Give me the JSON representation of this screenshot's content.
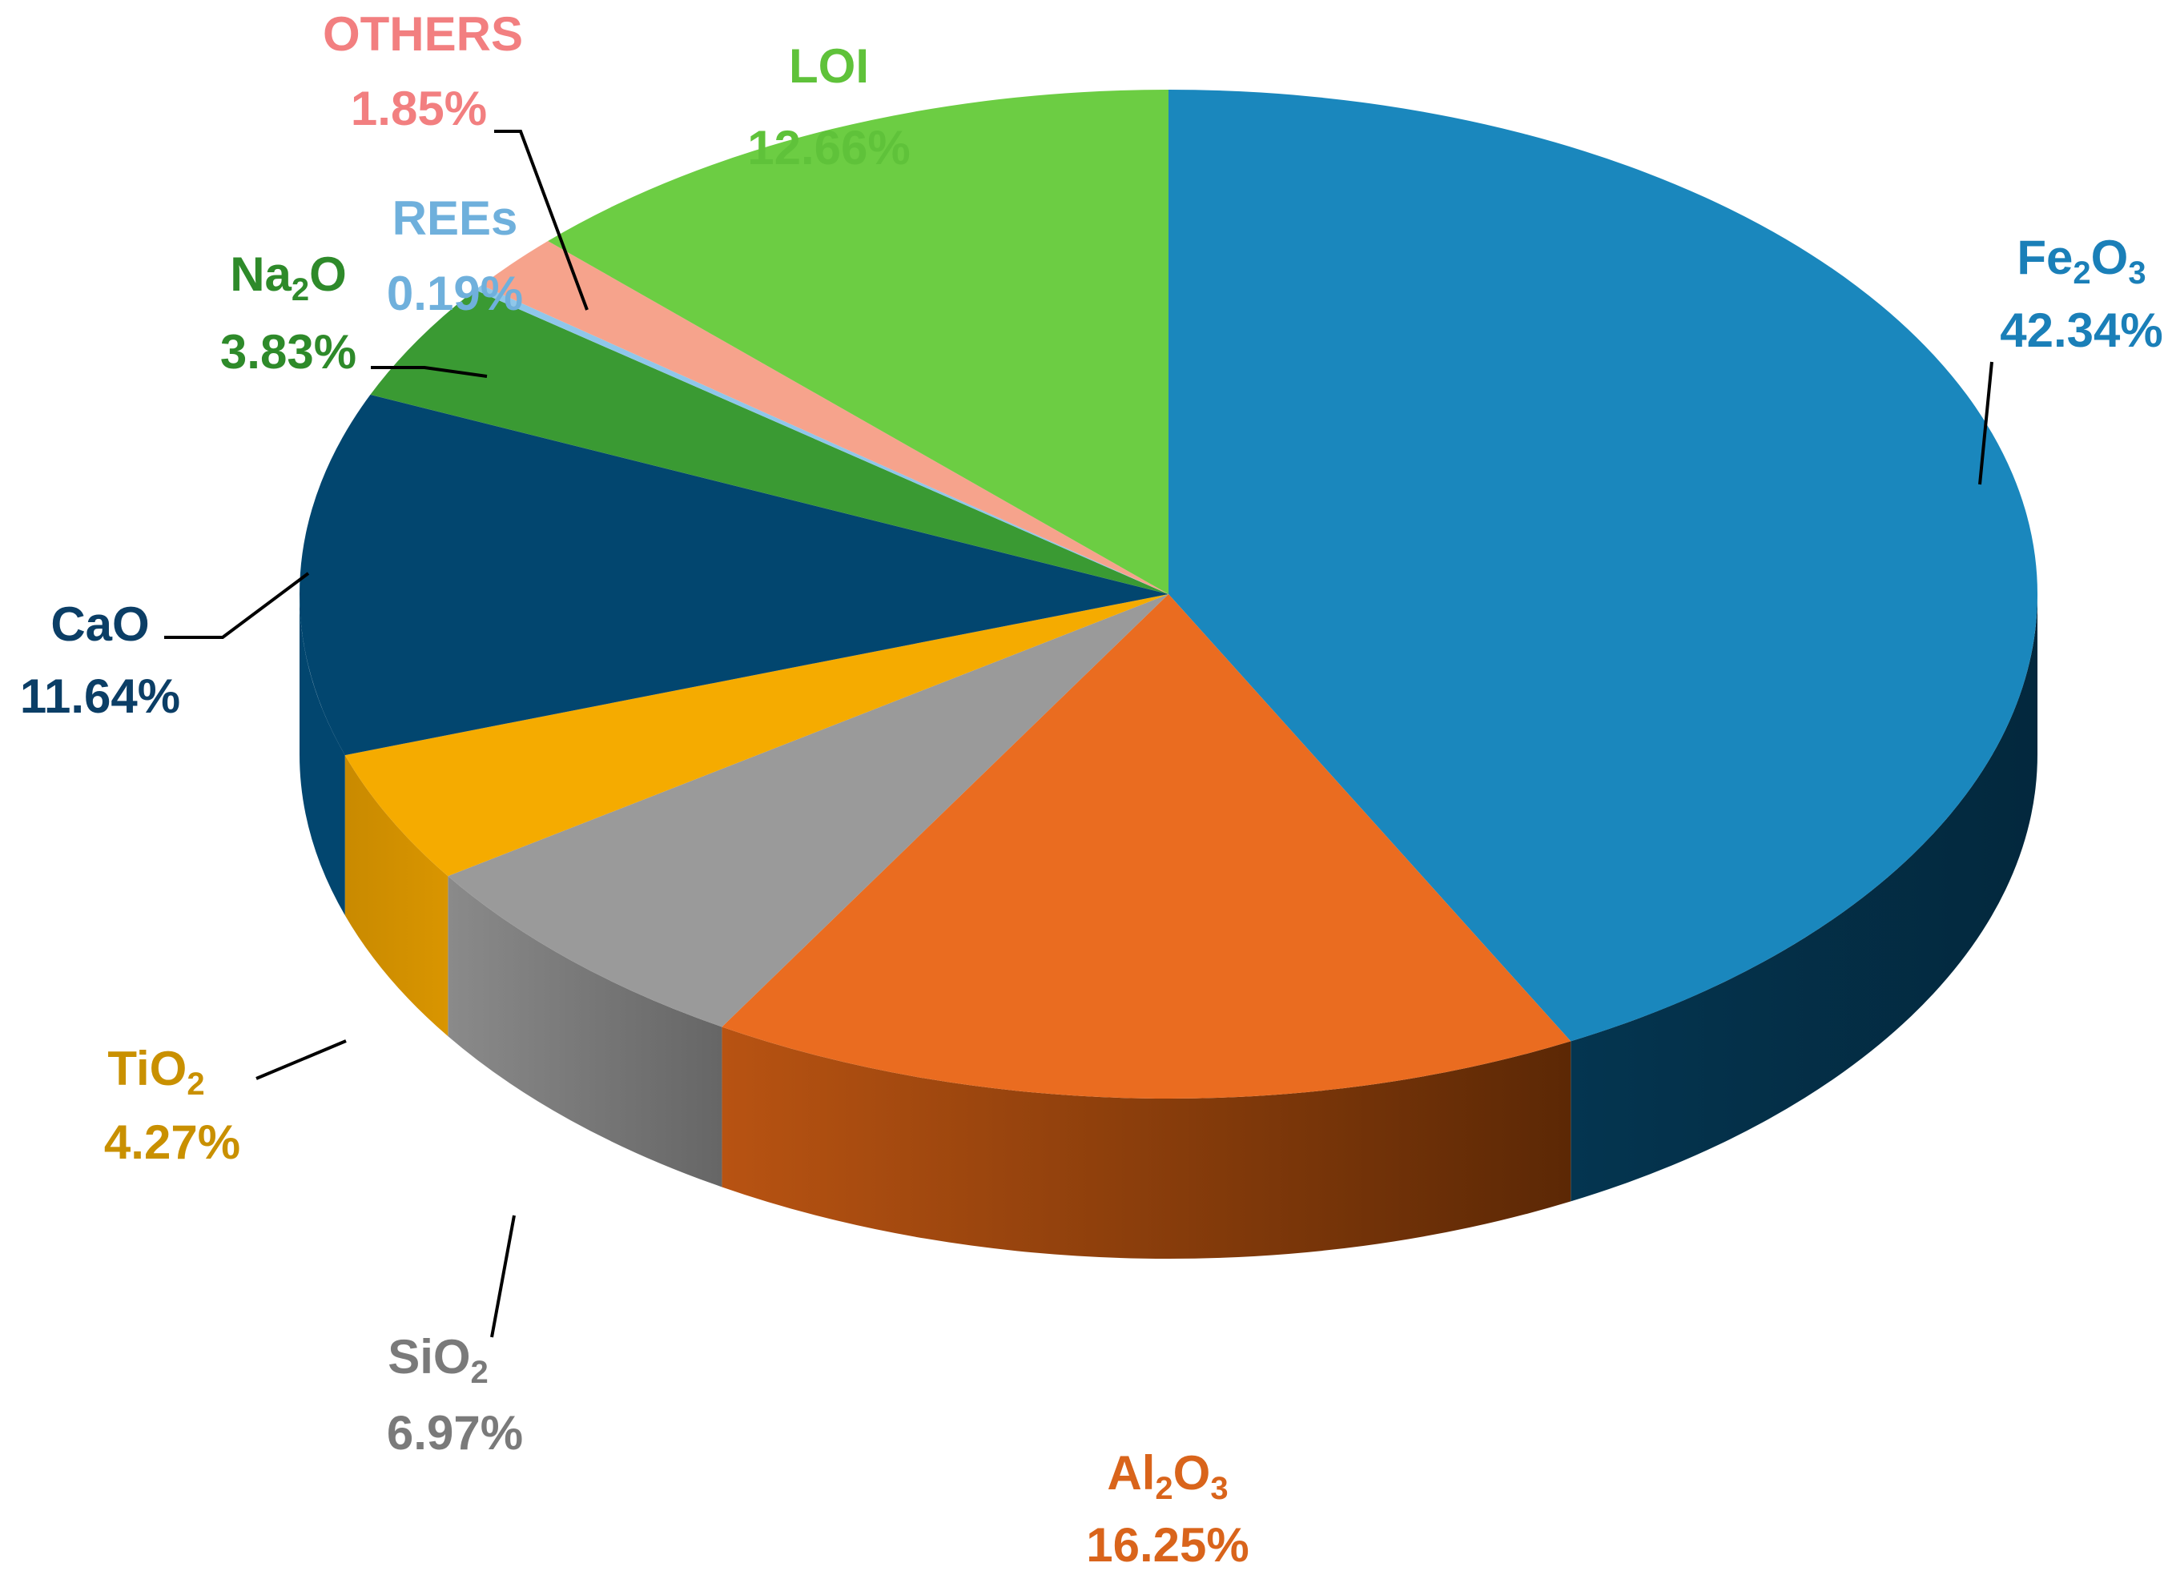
{
  "chart_data": {
    "type": "pie",
    "style": "3d",
    "title": "",
    "start_angle_deg": 90,
    "direction": "clockwise",
    "unit": "%",
    "slices": [
      {
        "key": "fe2o3",
        "label": "Fe2O3",
        "name_base": "Fe",
        "name_sub": "2",
        "name_tail": "O",
        "name_sub2": "3",
        "value": 42.34,
        "value_text": "42.34%",
        "color": "#1a87bd",
        "side_color": "#06334a",
        "text_color": "#1a7fb8"
      },
      {
        "key": "al2o3",
        "label": "Al2O3",
        "name_base": "Al",
        "name_sub": "2",
        "name_tail": "O",
        "name_sub2": "3",
        "value": 16.25,
        "value_text": "16.25%",
        "color": "#ea6c20",
        "side_color": "#a04a12",
        "text_color": "#d9641b"
      },
      {
        "key": "sio2",
        "label": "SiO2",
        "name_base": "SiO",
        "name_sub": "2",
        "value": 6.97,
        "value_text": "6.97%",
        "color": "#9a9a9a",
        "side_color": "#6e6e6e",
        "text_color": "#7a7a7a"
      },
      {
        "key": "tio2",
        "label": "TiO2",
        "name_base": "TiO",
        "name_sub": "2",
        "value": 4.27,
        "value_text": "4.27%",
        "color": "#f5ab00",
        "side_color": "#c78900",
        "text_color": "#c99000"
      },
      {
        "key": "cao",
        "label": "CaO",
        "name_base": "CaO",
        "value": 11.64,
        "value_text": "11.64%",
        "color": "#02466f",
        "side_color": "#02466f",
        "text_color": "#0b3e66"
      },
      {
        "key": "na2o",
        "label": "Na2O",
        "name_base": "Na",
        "name_sub": "2",
        "name_tail": "O",
        "value": 3.83,
        "value_text": "3.83%",
        "color": "#3a9a33",
        "side_color": "#2a7a24",
        "text_color": "#2e8a2a"
      },
      {
        "key": "rees",
        "label": "REEs",
        "name_base": "REEs",
        "value": 0.19,
        "value_text": "0.19%",
        "color": "#8fc7ea",
        "side_color": "#6aa7cc",
        "text_color": "#6fb0dc"
      },
      {
        "key": "others",
        "label": "OTHERS",
        "name_base": "OTHERS",
        "value": 1.85,
        "value_text": "1.85%",
        "color": "#f6a38c",
        "side_color": "#d98670",
        "text_color": "#f27f80"
      },
      {
        "key": "loi",
        "label": "LOI",
        "name_base": "LOI",
        "value": 12.66,
        "value_text": "12.66%",
        "color": "#6ccd43",
        "side_color": "#55a834",
        "text_color": "#5fc23a"
      }
    ],
    "legend": "none",
    "data_labels": "outside-with-leader-lines"
  }
}
